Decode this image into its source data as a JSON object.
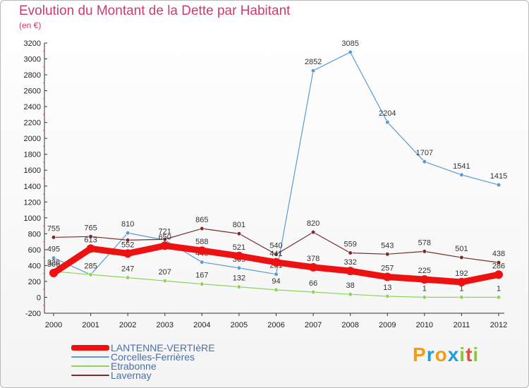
{
  "title": "Evolution du Montant de la Dette par Habitant",
  "subtitle": "(en €)",
  "logo": {
    "letters": [
      "P",
      "r",
      "o",
      "x",
      "i",
      "t",
      "i"
    ],
    "colors": [
      "#f39c12",
      "#1f9ed8",
      "#f39c12",
      "#1f9ed8",
      "#8cc63f",
      "#e74c3c",
      "#8cc63f"
    ]
  },
  "chart_data": {
    "type": "line",
    "x": [
      "2000",
      "2001",
      "2002",
      "2003",
      "2004",
      "2005",
      "2006",
      "2007",
      "2008",
      "2009",
      "2010",
      "2011",
      "2012"
    ],
    "ylim": [
      -200,
      3200
    ],
    "yticks": [
      -200,
      0,
      200,
      400,
      600,
      800,
      1000,
      1200,
      1400,
      1600,
      1800,
      2000,
      2200,
      2400,
      2600,
      2800,
      3000,
      3200
    ],
    "grid": false,
    "legend": "bottom-left",
    "series": [
      {
        "name": "Corcelles-Ferrières",
        "color": "#5a9bd4",
        "width": 1.2,
        "marker": 2.8,
        "values": [
          495,
          285,
          810,
          721,
          443,
          369,
          291,
          2852,
          3085,
          2204,
          1707,
          1541,
          1415
        ],
        "labels": [
          "495",
          "285",
          "810",
          "721",
          "443",
          "369",
          "291",
          "2852",
          "3085",
          "2204",
          "1707",
          "1541",
          "1415"
        ]
      },
      {
        "name": "Etrabonne",
        "color": "#8fd45a",
        "width": 1.2,
        "marker": 2.8,
        "values": [
          326,
          286,
          247,
          207,
          167,
          132,
          94,
          66,
          38,
          13,
          1,
          1,
          1
        ],
        "labels": [
          "326",
          "",
          "247",
          "207",
          "167",
          "132",
          "94",
          "66",
          "38",
          "13",
          "1",
          "1",
          "1"
        ]
      },
      {
        "name": "Lavernay",
        "color": "#7b2b2b",
        "width": 1.2,
        "marker": 2.8,
        "values": [
          755,
          765,
          720,
          730,
          865,
          801,
          540,
          820,
          559,
          543,
          578,
          501,
          438
        ],
        "labels": [
          "755",
          "765",
          "",
          "",
          "865",
          "801",
          "540",
          "820",
          "559",
          "543",
          "578",
          "501",
          "438"
        ]
      },
      {
        "name": "LANTENNE-VERTIèRE",
        "color": "#ee1111",
        "width": 9,
        "marker": 6,
        "values": [
          306,
          613,
          552,
          650,
          588,
          521,
          441,
          378,
          332,
          257,
          225,
          192,
          286
        ],
        "labels": [
          "306",
          "613",
          "552",
          "650",
          "588",
          "521",
          "441",
          "378",
          "332",
          "257",
          "225",
          "192",
          "286"
        ]
      }
    ]
  },
  "legend": [
    {
      "label": "LANTENNE-VERTIèRE",
      "color": "#ee1111",
      "thickness": 8
    },
    {
      "label": "Corcelles-Ferrières",
      "color": "#5a9bd4",
      "thickness": 2
    },
    {
      "label": "Etrabonne",
      "color": "#8fd45a",
      "thickness": 2
    },
    {
      "label": "Lavernay",
      "color": "#7b2b2b",
      "thickness": 2
    }
  ]
}
